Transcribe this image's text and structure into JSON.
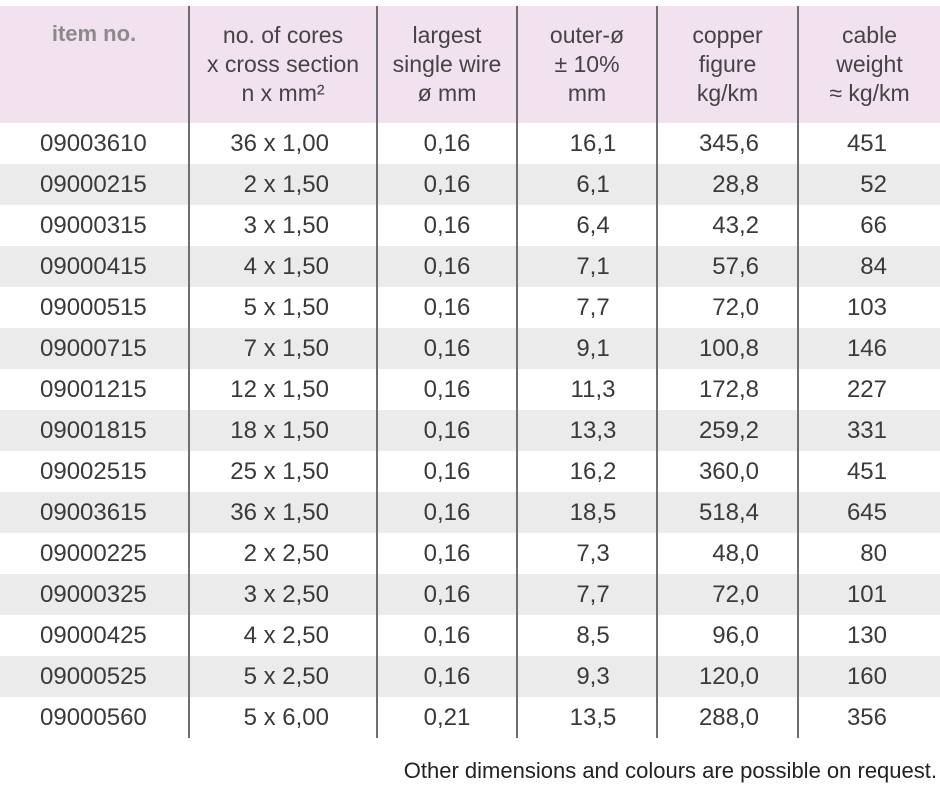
{
  "table": {
    "headers": [
      [
        "item no."
      ],
      [
        "no. of cores",
        "x cross section",
        "n x mm²"
      ],
      [
        "largest",
        "single wire",
        "ø mm"
      ],
      [
        "outer-ø",
        "± 10%",
        "mm"
      ],
      [
        "copper",
        "figure",
        "kg/km"
      ],
      [
        "cable",
        "weight",
        "≈ kg/km"
      ]
    ],
    "rows": [
      [
        "09003610",
        "36 x 1,00",
        "0,16",
        "16,1",
        "345,6",
        "451"
      ],
      [
        "09000215",
        "2 x 1,50",
        "0,16",
        "6,1",
        "28,8",
        "52"
      ],
      [
        "09000315",
        "3 x 1,50",
        "0,16",
        "6,4",
        "43,2",
        "66"
      ],
      [
        "09000415",
        "4 x 1,50",
        "0,16",
        "7,1",
        "57,6",
        "84"
      ],
      [
        "09000515",
        "5 x 1,50",
        "0,16",
        "7,7",
        "72,0",
        "103"
      ],
      [
        "09000715",
        "7 x 1,50",
        "0,16",
        "9,1",
        "100,8",
        "146"
      ],
      [
        "09001215",
        "12 x 1,50",
        "0,16",
        "11,3",
        "172,8",
        "227"
      ],
      [
        "09001815",
        "18 x 1,50",
        "0,16",
        "13,3",
        "259,2",
        "331"
      ],
      [
        "09002515",
        "25 x 1,50",
        "0,16",
        "16,2",
        "360,0",
        "451"
      ],
      [
        "09003615",
        "36 x 1,50",
        "0,16",
        "18,5",
        "518,4",
        "645"
      ],
      [
        "09000225",
        "2 x 2,50",
        "0,16",
        "7,3",
        "48,0",
        "80"
      ],
      [
        "09000325",
        "3 x 2,50",
        "0,16",
        "7,7",
        "72,0",
        "101"
      ],
      [
        "09000425",
        "4 x 2,50",
        "0,16",
        "8,5",
        "96,0",
        "130"
      ],
      [
        "09000525",
        "5 x 2,50",
        "0,16",
        "9,3",
        "120,0",
        "160"
      ],
      [
        "09000560",
        "5 x 6,00",
        "0,21",
        "13,5",
        "288,0",
        "356"
      ]
    ]
  },
  "footnote": "Other dimensions and colours are possible on request.",
  "colors": {
    "header_bg": "#f2e1ee",
    "stripe_bg": "#ebebeb",
    "divider": "#6e6e6e"
  }
}
